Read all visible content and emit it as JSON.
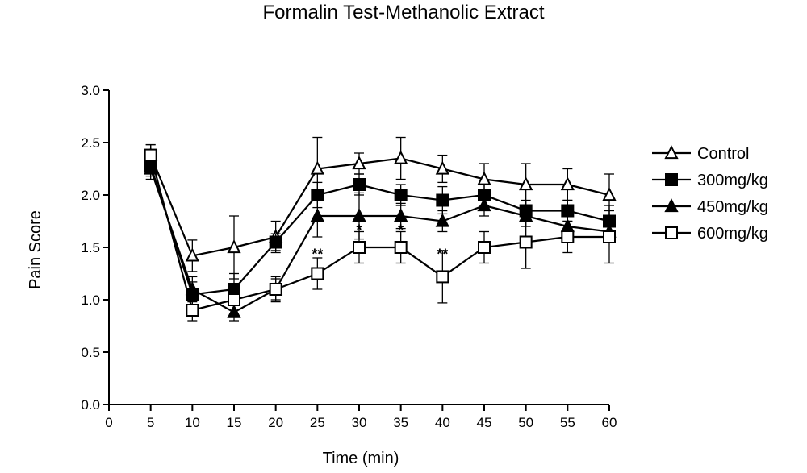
{
  "chart_data": {
    "type": "line",
    "title": "Formalin Test-Methanolic Extract",
    "xlabel": "Time (min)",
    "ylabel": "Pain Score",
    "xlim": [
      0,
      60
    ],
    "ylim": [
      0,
      3.0
    ],
    "x_ticks": [
      "0",
      "5",
      "10",
      "15",
      "20",
      "25",
      "30",
      "35",
      "40",
      "45",
      "50",
      "55",
      "60"
    ],
    "y_ticks": [
      "0.0",
      "0.5",
      "1.0",
      "1.5",
      "2.0",
      "2.5",
      "3.0"
    ],
    "x": [
      5,
      10,
      15,
      20,
      25,
      30,
      35,
      40,
      45,
      50,
      55,
      60
    ],
    "grid": false,
    "legend_position": "right",
    "series": [
      {
        "name": "Control",
        "marker": "triangle-open",
        "values": [
          2.38,
          1.42,
          1.5,
          1.6,
          2.25,
          2.3,
          2.35,
          2.25,
          2.15,
          2.1,
          2.1,
          2.0
        ],
        "errors": [
          0.1,
          0.15,
          0.3,
          0.15,
          0.3,
          0.1,
          0.2,
          0.13,
          0.15,
          0.2,
          0.15,
          0.2
        ]
      },
      {
        "name": "300mg/kg",
        "marker": "square-filled",
        "values": [
          2.28,
          1.05,
          1.1,
          1.55,
          2.0,
          2.1,
          2.0,
          1.95,
          2.0,
          1.85,
          1.85,
          1.75
        ],
        "errors": [
          0.1,
          0.12,
          0.15,
          0.08,
          0.12,
          0.1,
          0.1,
          0.13,
          0.1,
          0.1,
          0.1,
          0.15
        ]
      },
      {
        "name": "450mg/kg",
        "marker": "triangle-filled",
        "values": [
          2.25,
          1.1,
          0.88,
          1.1,
          1.8,
          1.8,
          1.8,
          1.75,
          1.9,
          1.8,
          1.7,
          1.65
        ],
        "errors": [
          0.1,
          0.12,
          0.08,
          0.1,
          0.2,
          0.22,
          0.12,
          0.1,
          0.1,
          0.1,
          0.1,
          0.1
        ]
      },
      {
        "name": "600mg/kg",
        "marker": "square-open",
        "values": [
          2.38,
          0.9,
          1.0,
          1.1,
          1.25,
          1.5,
          1.5,
          1.22,
          1.5,
          1.55,
          1.6,
          1.6
        ],
        "errors": [
          0.1,
          0.1,
          0.15,
          0.12,
          0.15,
          0.15,
          0.15,
          0.25,
          0.15,
          0.25,
          0.15,
          0.25
        ]
      }
    ],
    "annotations": [
      {
        "x": 25,
        "y": 1.45,
        "text": "**"
      },
      {
        "x": 30,
        "y": 1.68,
        "text": "*"
      },
      {
        "x": 35,
        "y": 1.68,
        "text": "*"
      },
      {
        "x": 40,
        "y": 1.45,
        "text": "**"
      }
    ]
  }
}
